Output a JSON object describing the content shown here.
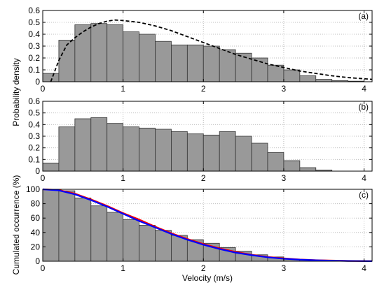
{
  "chart_data": [
    {
      "panel_label": "(a)",
      "type": "bar",
      "bin_width": 0.2,
      "x_left_edges": [
        0,
        0.2,
        0.4,
        0.6,
        0.8,
        1.0,
        1.2,
        1.4,
        1.6,
        1.8,
        2.0,
        2.2,
        2.4,
        2.6,
        2.8,
        3.0,
        3.2,
        3.4,
        3.6,
        3.8
      ],
      "values": [
        0.07,
        0.35,
        0.48,
        0.49,
        0.48,
        0.42,
        0.4,
        0.34,
        0.31,
        0.31,
        0.3,
        0.27,
        0.24,
        0.2,
        0.14,
        0.1,
        0.05,
        0.02,
        0.01,
        0.005
      ],
      "curve": {
        "style": "dashed",
        "color": "#000000",
        "x": [
          0.1,
          0.2,
          0.3,
          0.4,
          0.5,
          0.6,
          0.7,
          0.8,
          0.9,
          1.0,
          1.2,
          1.4,
          1.6,
          1.8,
          2.0,
          2.2,
          2.4,
          2.6,
          2.8,
          3.0,
          3.2,
          3.4,
          3.6,
          3.8,
          4.0,
          4.1
        ],
        "y": [
          0.0,
          0.18,
          0.31,
          0.37,
          0.42,
          0.46,
          0.49,
          0.51,
          0.52,
          0.515,
          0.5,
          0.47,
          0.43,
          0.38,
          0.33,
          0.28,
          0.23,
          0.19,
          0.15,
          0.12,
          0.09,
          0.07,
          0.05,
          0.035,
          0.025,
          0.02
        ]
      },
      "xlim": [
        0,
        4.1
      ],
      "ylim": [
        0,
        0.6
      ],
      "yticks": [
        "0",
        "0.1",
        "0.2",
        "0.3",
        "0.4",
        "0.5",
        "0.6"
      ],
      "xticks": [
        "0",
        "1",
        "2",
        "3",
        "4"
      ],
      "grid": true
    },
    {
      "panel_label": "(b)",
      "type": "bar",
      "bin_width": 0.2,
      "x_left_edges": [
        0,
        0.2,
        0.4,
        0.6,
        0.8,
        1.0,
        1.2,
        1.4,
        1.6,
        1.8,
        2.0,
        2.2,
        2.4,
        2.6,
        2.8,
        3.0,
        3.2,
        3.4
      ],
      "values": [
        0.07,
        0.38,
        0.45,
        0.46,
        0.41,
        0.38,
        0.37,
        0.36,
        0.34,
        0.32,
        0.31,
        0.34,
        0.3,
        0.24,
        0.16,
        0.09,
        0.03,
        0.01
      ],
      "xlim": [
        0,
        4.1
      ],
      "ylim": [
        0,
        0.6
      ],
      "yticks": [
        "0",
        "0.1",
        "0.2",
        "0.3",
        "0.4",
        "0.5",
        "0.6"
      ],
      "xticks": [
        "0",
        "1",
        "2",
        "3",
        "4"
      ],
      "grid": true
    },
    {
      "panel_label": "(c)",
      "type": "bar",
      "bin_width": 0.2,
      "x_left_edges": [
        0,
        0.2,
        0.4,
        0.6,
        0.8,
        1.0,
        1.2,
        1.4,
        1.6,
        1.8,
        2.0,
        2.2,
        2.4,
        2.6,
        2.8,
        3.0,
        3.2,
        3.4,
        3.6,
        3.8
      ],
      "values": [
        100,
        98,
        88,
        77,
        68,
        58,
        50,
        43,
        36,
        30,
        25,
        19,
        14,
        9,
        6,
        3,
        2,
        1,
        0.5,
        0.2
      ],
      "curves": [
        {
          "color": "#ff0000",
          "x": [
            0,
            0.2,
            0.4,
            0.6,
            0.8,
            1.0,
            1.2,
            1.4,
            1.6,
            1.8,
            2.0,
            2.2,
            2.4,
            2.6,
            2.8,
            3.0,
            3.2,
            3.4,
            3.6,
            3.8,
            4.1
          ],
          "y": [
            100,
            99,
            94,
            86,
            77,
            67,
            58,
            48,
            39,
            31,
            24,
            18,
            13,
            9,
            6,
            4,
            2.5,
            1.5,
            1,
            0.5,
            0.2
          ]
        },
        {
          "color": "#0000ff",
          "x": [
            0,
            0.2,
            0.4,
            0.6,
            0.8,
            1.0,
            1.2,
            1.4,
            1.6,
            1.8,
            2.0,
            2.2,
            2.4,
            2.6,
            2.8,
            3.0,
            3.2,
            3.4,
            3.6,
            3.8,
            4.1
          ],
          "y": [
            100,
            98.5,
            93,
            85,
            76,
            66,
            56,
            47,
            38,
            30,
            23,
            17,
            12,
            8.5,
            5.5,
            3.5,
            2.2,
            1.3,
            0.8,
            0.4,
            0.1
          ]
        }
      ],
      "xlim": [
        0,
        4.1
      ],
      "ylim": [
        0,
        100
      ],
      "yticks": [
        "0",
        "20",
        "40",
        "60",
        "80",
        "100"
      ],
      "xticks": [
        "0",
        "1",
        "2",
        "3",
        "4"
      ],
      "grid": true
    }
  ],
  "labels": {
    "ylabel_ab": "Probability density",
    "ylabel_c": "Cumulated occurrence (%)",
    "xlabel": "Velocity (m/s)"
  },
  "colors": {
    "bar_fill": "#999999",
    "bar_edge": "#333333",
    "grid": "#bfbfbf"
  }
}
